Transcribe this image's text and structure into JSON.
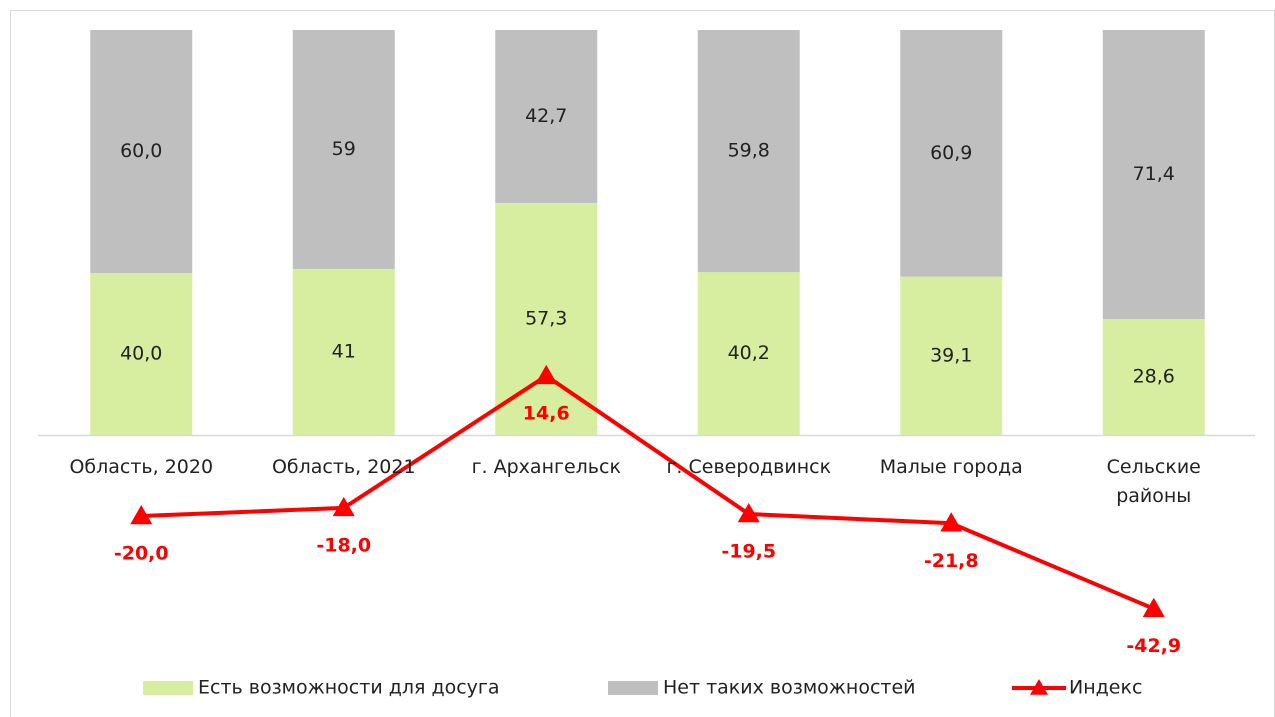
{
  "chart_data": {
    "type": "bar",
    "stacked": true,
    "categories": [
      "Область, 2020",
      "Область, 2021",
      "г. Архангельск",
      "г. Северодвинск",
      "Малые города",
      "Сельские районы"
    ],
    "ylim": [
      0,
      100
    ],
    "y2lim": [
      0,
      100
    ],
    "series": [
      {
        "name": "Есть возможности для досуга",
        "color": "#d7eea0",
        "values": [
          40.0,
          41,
          57.3,
          40.2,
          39.1,
          28.6
        ],
        "value_labels": [
          "40,0",
          "41",
          "57,3",
          "40,2",
          "39,1",
          "28,6"
        ]
      },
      {
        "name": "Нет таких возможностей",
        "color": "#bfbfbf",
        "values": [
          60.0,
          59,
          42.7,
          59.8,
          60.9,
          71.4
        ],
        "value_labels": [
          "60,0",
          "59",
          "42,7",
          "59,8",
          "60,9",
          "71,4"
        ]
      },
      {
        "name": "Индекс",
        "type": "line",
        "axis": "y2",
        "marker": "triangle",
        "color": "#ff0000",
        "values": [
          -20.0,
          -18.0,
          14.6,
          -19.5,
          -21.8,
          -42.9
        ],
        "value_labels": [
          "-20,0",
          "-18,0",
          "14,6",
          "-19,5",
          "-21,8",
          "-42,9"
        ]
      }
    ],
    "legend": "bottom"
  }
}
